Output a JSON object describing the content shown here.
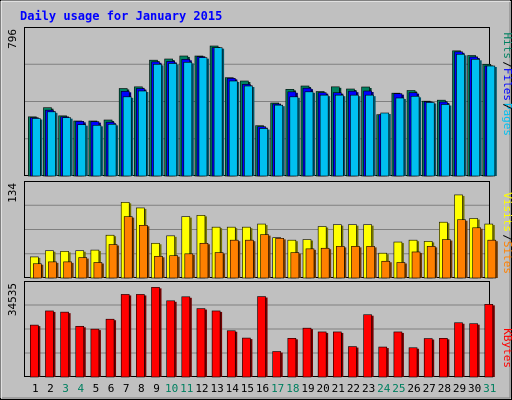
{
  "chart_data": [
    {
      "type": "bar",
      "title": "Daily usage for January 2015",
      "categories": [
        "1",
        "2",
        "3",
        "4",
        "5",
        "6",
        "7",
        "8",
        "9",
        "10",
        "11",
        "12",
        "13",
        "14",
        "15",
        "16",
        "17",
        "18",
        "19",
        "20",
        "21",
        "22",
        "23",
        "24",
        "25",
        "26",
        "27",
        "28",
        "29",
        "30",
        "31"
      ],
      "weekend_categories": [
        "3",
        "4",
        "10",
        "11",
        "17",
        "18",
        "24",
        "25",
        "31"
      ],
      "ytick_label": "796",
      "ylim": [
        0,
        870
      ],
      "legend": [
        "Pages",
        "Files",
        "Hits"
      ],
      "series": [
        {
          "name": "Hits",
          "color": "#008060",
          "values": [
            355,
            410,
            361,
            330,
            330,
            336,
            525,
            535,
            695,
            702,
            720,
            720,
            780,
            590,
            570,
            302,
            438,
            520,
            540,
            507,
            535,
            522,
            534,
            368,
            497,
            513,
            449,
            455,
            751,
            723,
            670
          ]
        },
        {
          "name": "Files",
          "color": "#0000ff",
          "values": [
            350,
            395,
            355,
            328,
            326,
            323,
            508,
            525,
            685,
            688,
            700,
            716,
            770,
            586,
            550,
            296,
            432,
            505,
            527,
            500,
            500,
            509,
            510,
            368,
            494,
            500,
            445,
            444,
            745,
            714,
            660
          ]
        },
        {
          "name": "Pages",
          "color": "#00c0f0",
          "values": [
            345,
            385,
            350,
            308,
            304,
            310,
            475,
            510,
            670,
            675,
            682,
            710,
            770,
            570,
            540,
            285,
            425,
            475,
            505,
            485,
            485,
            485,
            485,
            378,
            468,
            478,
            441,
            429,
            730,
            700,
            660
          ]
        }
      ]
    },
    {
      "type": "bar",
      "categories": [
        "1",
        "2",
        "3",
        "4",
        "5",
        "6",
        "7",
        "8",
        "9",
        "10",
        "11",
        "12",
        "13",
        "14",
        "15",
        "16",
        "17",
        "18",
        "19",
        "20",
        "21",
        "22",
        "23",
        "24",
        "25",
        "26",
        "27",
        "28",
        "29",
        "30",
        "31"
      ],
      "ytick_label": "134",
      "ylim": [
        0,
        150
      ],
      "legend": [
        "Sites",
        "Visits"
      ],
      "series": [
        {
          "name": "Visits",
          "color": "#ffff00",
          "values": [
            34,
            44,
            43,
            44,
            45,
            69,
            122,
            113,
            56,
            68,
            99,
            101,
            82,
            82,
            82,
            87,
            65,
            61,
            62,
            83,
            86,
            86,
            86,
            40,
            58,
            61,
            59,
            90,
            134,
            96,
            87
          ]
        },
        {
          "name": "Sites",
          "color": "#ff8000",
          "values": [
            23,
            26,
            26,
            33,
            25,
            54,
            99,
            85,
            35,
            36,
            39,
            56,
            41,
            61,
            61,
            70,
            64,
            41,
            47,
            48,
            51,
            51,
            51,
            27,
            25,
            42,
            51,
            62,
            94,
            81,
            61
          ]
        }
      ]
    },
    {
      "type": "bar",
      "categories": [
        "1",
        "2",
        "3",
        "4",
        "5",
        "6",
        "7",
        "8",
        "9",
        "10",
        "11",
        "12",
        "13",
        "14",
        "15",
        "16",
        "17",
        "18",
        "19",
        "20",
        "21",
        "22",
        "23",
        "24",
        "25",
        "26",
        "27",
        "28",
        "29",
        "30",
        "31"
      ],
      "ytick_label": "34535",
      "ylim": [
        0,
        39000
      ],
      "legend": [
        "KBytes"
      ],
      "series": [
        {
          "name": "KBytes",
          "color": "#ff0000",
          "values": [
            22000,
            28000,
            27500,
            21500,
            20300,
            24500,
            35000,
            35000,
            38000,
            32300,
            34000,
            29000,
            28000,
            19600,
            16500,
            34100,
            10800,
            16400,
            20700,
            19100,
            19100,
            12900,
            26400,
            12700,
            19100,
            12400,
            16300,
            16400,
            23000,
            22600,
            30800
          ]
        }
      ]
    }
  ]
}
